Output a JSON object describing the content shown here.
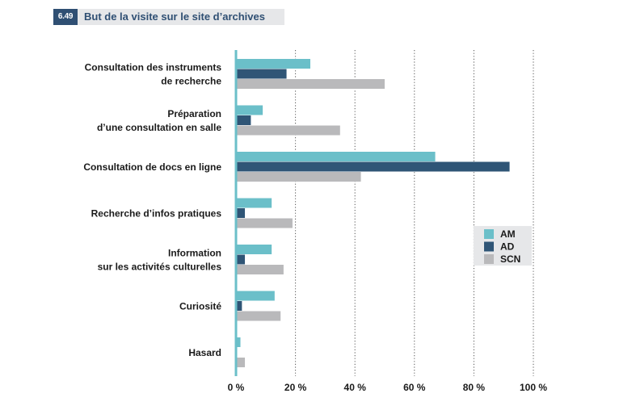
{
  "figure": {
    "number": "6.49",
    "title": "But de la visite sur le site d’archives"
  },
  "chart_data": {
    "type": "bar",
    "orientation": "horizontal",
    "categories": [
      [
        "Consultation des instruments",
        "de recherche"
      ],
      [
        "Préparation",
        "d’une consultation en salle"
      ],
      [
        "Consultation de docs en ligne"
      ],
      [
        "Recherche d’infos pratiques"
      ],
      [
        "Information",
        "sur les activités culturelles"
      ],
      [
        "Curiosité"
      ],
      [
        "Hasard"
      ]
    ],
    "series": [
      {
        "name": "AM",
        "color": "#6bbfc9",
        "values": [
          25,
          9,
          67,
          12,
          12,
          13,
          1.5
        ]
      },
      {
        "name": "AD",
        "color": "#2f5576",
        "values": [
          17,
          5,
          92,
          3,
          3,
          2,
          0
        ]
      },
      {
        "name": "SCN",
        "color": "#b9b9bb",
        "values": [
          50,
          35,
          42,
          19,
          16,
          15,
          3
        ]
      }
    ],
    "xlim": [
      0,
      100
    ],
    "xticks": [
      0,
      20,
      40,
      60,
      80,
      100
    ],
    "xtick_labels": [
      "0 %",
      "20 %",
      "40 %",
      "60 %",
      "80 %",
      "100 %"
    ],
    "grid": "vertical dotted",
    "legend_position": "right"
  }
}
